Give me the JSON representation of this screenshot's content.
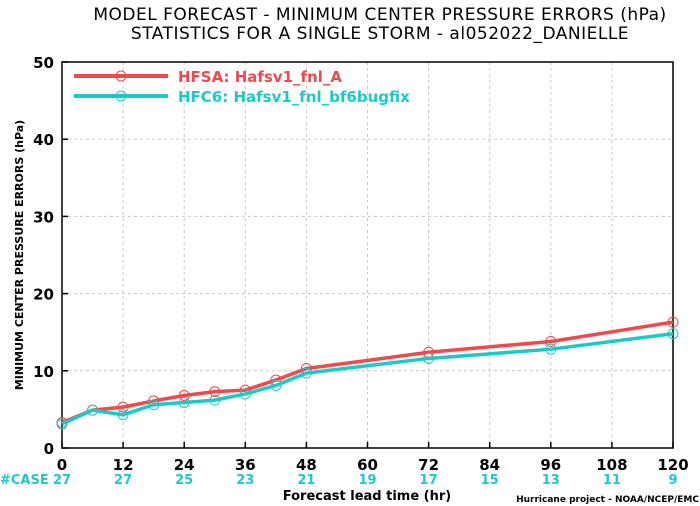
{
  "title_line1": "MODEL FORECAST - MINIMUM CENTER PRESSURE ERRORS (hPa)",
  "title_line2": "STATISTICS FOR A SINGLE STORM - al052022_DANIELLE",
  "ylabel": "MINIMUM CENTER PRESSURE ERRORS (hPa)",
  "xlabel": "Forecast lead time (hr)",
  "credit": "Hurricane project - NOAA/NCEP/EMC",
  "case_label": "#CASE",
  "colors": {
    "hfsa": "#f2484b",
    "hfc6": "#1cc9c9",
    "case": "#1cc9c9"
  },
  "chart_data": {
    "type": "line",
    "xlim": [
      0,
      120
    ],
    "ylim": [
      0,
      50
    ],
    "xticks": [
      0,
      12,
      24,
      36,
      48,
      60,
      72,
      84,
      96,
      108,
      120
    ],
    "yticks": [
      0,
      10,
      20,
      30,
      40,
      50
    ],
    "grid": true,
    "legend_position": "top-left",
    "x": [
      0,
      6,
      12,
      18,
      24,
      30,
      36,
      42,
      48,
      72,
      96,
      120
    ],
    "series": [
      {
        "name": "HFSA: Hafsv1_fnl_A",
        "color": "#f2484b",
        "values": [
          3.3,
          4.9,
          5.3,
          6.1,
          6.8,
          7.3,
          7.5,
          8.8,
          10.3,
          12.4,
          13.8,
          16.3
        ]
      },
      {
        "name": "HFC6: Hafsv1_fnl_bf6bugfix",
        "color": "#1cc9c9",
        "values": [
          3.1,
          4.9,
          4.3,
          5.6,
          5.9,
          6.2,
          7.0,
          8.1,
          9.7,
          11.6,
          12.8,
          14.8
        ]
      }
    ],
    "cases": {
      "x": [
        0,
        12,
        24,
        36,
        48,
        60,
        72,
        84,
        96,
        108,
        120
      ],
      "counts": [
        27,
        27,
        25,
        23,
        21,
        19,
        17,
        15,
        13,
        11,
        9
      ]
    }
  }
}
